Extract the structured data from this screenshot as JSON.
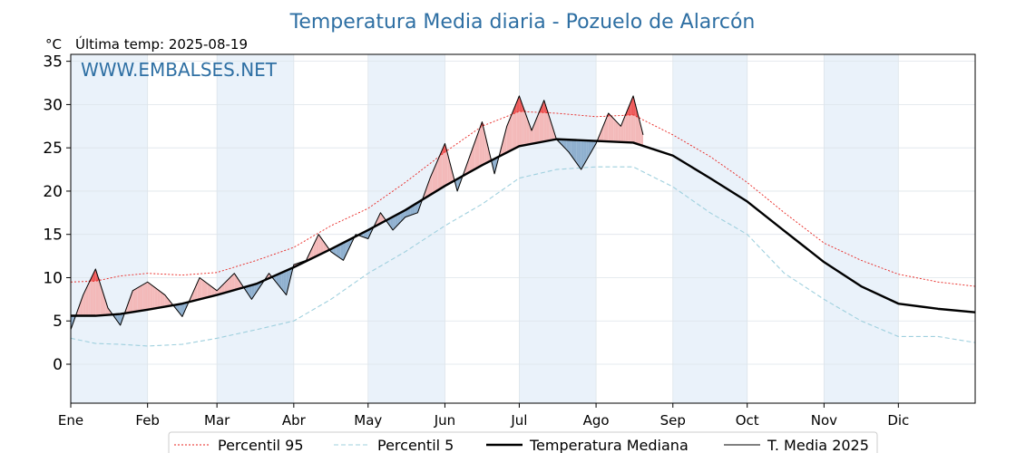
{
  "chart_data": {
    "type": "line",
    "title": "Temperatura Media diaria - Pozuelo de Alarcón",
    "unit_label": "°C",
    "last_temp_label": "Última temp: 2025-08-19",
    "watermark": "WWW.EMBALSES.NET",
    "ylim": [
      -4.5,
      35.8
    ],
    "yticks": [
      0,
      5,
      10,
      15,
      20,
      25,
      30,
      35
    ],
    "xlim_days": [
      0,
      365
    ],
    "months": [
      {
        "label": "Ene",
        "start_day": 0
      },
      {
        "label": "Feb",
        "start_day": 31
      },
      {
        "label": "Mar",
        "start_day": 59
      },
      {
        "label": "Abr",
        "start_day": 90
      },
      {
        "label": "May",
        "start_day": 120
      },
      {
        "label": "Jun",
        "start_day": 151
      },
      {
        "label": "Jul",
        "start_day": 181
      },
      {
        "label": "Ago",
        "start_day": 212
      },
      {
        "label": "Sep",
        "start_day": 243
      },
      {
        "label": "Oct",
        "start_day": 273
      },
      {
        "label": "Nov",
        "start_day": 304
      },
      {
        "label": "Dic",
        "start_day": 334
      }
    ],
    "grid": true,
    "legend_position": "bottom-center",
    "series": [
      {
        "name": "Percentil 95",
        "style": "dotted",
        "color": "#e8231f",
        "x": [
          0,
          10,
          20,
          31,
          45,
          59,
          75,
          90,
          105,
          120,
          135,
          151,
          166,
          181,
          196,
          212,
          227,
          243,
          258,
          273,
          288,
          304,
          319,
          334,
          350,
          365
        ],
        "y": [
          9.5,
          9.6,
          10.2,
          10.5,
          10.3,
          10.6,
          12.0,
          13.5,
          16.0,
          18.0,
          21.0,
          24.5,
          27.5,
          29.2,
          29.0,
          28.6,
          28.8,
          26.5,
          24.0,
          21.0,
          17.5,
          14.0,
          12.0,
          10.4,
          9.5,
          9.0
        ]
      },
      {
        "name": "Percentil 5",
        "style": "dashed",
        "color": "#9fd0de",
        "x": [
          0,
          10,
          20,
          31,
          45,
          59,
          75,
          90,
          105,
          120,
          135,
          151,
          166,
          181,
          196,
          212,
          227,
          243,
          258,
          273,
          288,
          304,
          319,
          334,
          350,
          365
        ],
        "y": [
          3.0,
          2.4,
          2.3,
          2.1,
          2.3,
          3.0,
          4.0,
          5.0,
          7.5,
          10.5,
          13.0,
          16.0,
          18.5,
          21.5,
          22.5,
          22.8,
          22.8,
          20.5,
          17.5,
          15.0,
          10.5,
          7.5,
          5.0,
          3.2,
          3.2,
          2.5
        ]
      },
      {
        "name": "Temperatura Mediana",
        "style": "solid-thick",
        "color": "#000000",
        "x": [
          0,
          10,
          20,
          31,
          45,
          59,
          75,
          90,
          105,
          120,
          135,
          151,
          166,
          181,
          196,
          212,
          227,
          243,
          258,
          273,
          288,
          304,
          319,
          334,
          350,
          365
        ],
        "y": [
          5.6,
          5.6,
          5.8,
          6.3,
          7.0,
          8.0,
          9.3,
          11.2,
          13.3,
          15.5,
          17.8,
          20.6,
          23.0,
          25.2,
          26.0,
          25.8,
          25.6,
          24.1,
          21.5,
          18.8,
          15.4,
          11.8,
          9.0,
          7.0,
          6.4,
          6.0
        ]
      },
      {
        "name": "T. Media 2025",
        "style": "solid-thin",
        "color": "#000000",
        "x": [
          0,
          5,
          10,
          15,
          20,
          25,
          31,
          38,
          45,
          52,
          59,
          66,
          73,
          80,
          87,
          90,
          95,
          100,
          105,
          110,
          115,
          120,
          125,
          130,
          135,
          140,
          145,
          151,
          156,
          161,
          166,
          171,
          176,
          181,
          186,
          191,
          196,
          201,
          206,
          212,
          217,
          222,
          227,
          231
        ],
        "y": [
          4.0,
          8.0,
          11.0,
          6.5,
          4.5,
          8.5,
          9.5,
          8.0,
          5.5,
          10.0,
          8.5,
          10.5,
          7.5,
          10.5,
          8.0,
          11.5,
          12.0,
          15.0,
          13.0,
          12.0,
          15.0,
          14.5,
          17.5,
          15.5,
          17.0,
          17.5,
          21.5,
          25.5,
          20.0,
          24.0,
          28.0,
          22.0,
          27.5,
          31.0,
          27.0,
          30.5,
          26.0,
          24.5,
          22.5,
          25.5,
          29.0,
          27.5,
          31.0,
          26.5
        ]
      }
    ],
    "legend": [
      "Percentil 95",
      "Percentil 5",
      "Temperatura Mediana",
      "T. Media 2025"
    ]
  },
  "colors": {
    "above_fill": "#f3b9b9",
    "above_fill_strong": "#ee5a5a",
    "below_fill": "#8fb0cf",
    "below_fill_strong": "#1f5f92",
    "band": "#eaf2fa"
  }
}
